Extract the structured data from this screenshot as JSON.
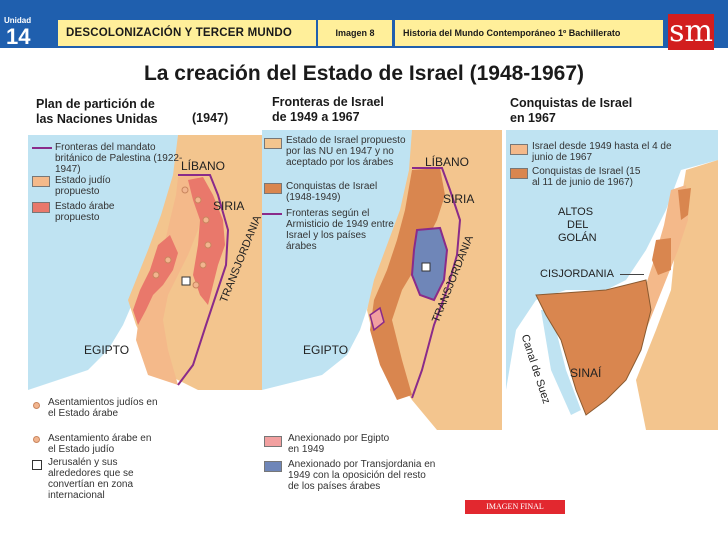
{
  "header": {
    "unit_label": "Unidad",
    "unit_number": "14",
    "title": "DESCOLONIZACIÓN Y TERCER MUNDO",
    "image_label": "Imagen 8",
    "course": "Historia del Mundo Contemporáneo 1º Bachillerato",
    "logo": "sm"
  },
  "title": "La creación del Estado de Israel  (1948-1967)",
  "map1": {
    "heading_line1": "Plan de partición de",
    "heading_line2": "las Naciones Unidas",
    "year": "(1947)",
    "legend": [
      "Fronteras del mandato británico de Palestina (1922-1947)",
      "Estado judío propuesto",
      "Estado árabe propuesto"
    ],
    "labels": {
      "libano": "LÍBANO",
      "siria": "SIRIA",
      "transjordania": "TRANSJORDANIA",
      "egipto": "EGIPTO"
    },
    "bottom_legend": [
      "Asentamientos judíos en el Estado árabe",
      "Asentamiento árabe en el Estado judío",
      "Jerusalén y sus alrededores que se convertían en zona internacional"
    ]
  },
  "map2": {
    "heading_line1": "Fronteras de Israel",
    "heading_line2": "de 1949 a 1967",
    "legend": [
      "Estado de Israel propuesto por las NU en 1947 y no aceptado por los árabes",
      "Conquistas de Israel (1948-1949)",
      "Fronteras según el Armisticio de 1949 entre Israel y los países árabes"
    ],
    "labels": {
      "libano": "LÍBANO",
      "siria": "SIRIA",
      "transjordania": "TRANSJORDANIA",
      "egipto": "EGIPTO"
    },
    "bottom_legend": [
      "Anexionado por Egipto en 1949",
      "Anexionado por Transjordania en 1949 con la oposición del resto de los países árabes"
    ]
  },
  "map3": {
    "heading_line1": "Conquistas de Israel",
    "heading_line2": "en 1967",
    "legend": [
      "Israel desde 1949 hasta el 4 de junio de 1967",
      "Conquistas de Israel (15 al 11 de junio de 1967)"
    ],
    "labels": {
      "altos1": "ALTOS",
      "altos2": "DEL",
      "altos3": "GOLÁN",
      "cisjordania": "CISJORDANIA",
      "canal": "Canal de Suez",
      "sinai": "SINAÍ"
    }
  },
  "footer_button": "IMAGEN FINAL",
  "colors": {
    "header_blue": "#1f5fae",
    "tab_yellow": "#ffef9a",
    "jewish": "#f4b98a",
    "arab": "#e9786b",
    "conquest": "#d9864f",
    "sea": "#bfe3f2",
    "jordan_annex": "#6f86b8",
    "egypt_annex": "#f2a0a0",
    "border_purple": "#8a2b8a"
  }
}
